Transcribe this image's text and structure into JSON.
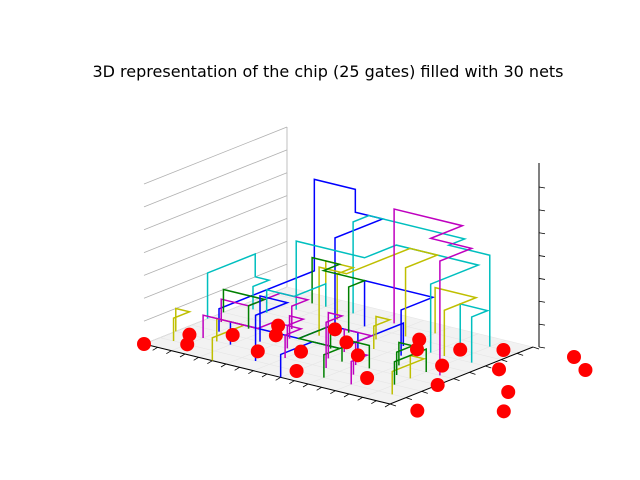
{
  "chart_data": {
    "type": "3d-line",
    "title": "3D representation of the chip (25 gates) filled with 30 nets",
    "xlabel": "",
    "ylabel": "",
    "zlabel": "",
    "tick_labels_visible": false,
    "grid": true,
    "pane_floor_color": "#f2f2f2",
    "gate_color": "#ff0000",
    "net_colors": [
      "#0000ff",
      "#00bfbf",
      "#bfbf00",
      "#bf00bf",
      "#008000"
    ],
    "gates": [
      [
        0,
        0
      ],
      [
        1,
        2
      ],
      [
        2,
        1
      ],
      [
        3,
        3
      ],
      [
        4,
        5
      ],
      [
        5,
        4
      ],
      [
        6,
        2
      ],
      [
        7,
        6
      ],
      [
        8,
        3
      ],
      [
        9,
        5
      ],
      [
        10,
        1
      ],
      [
        11,
        4
      ],
      [
        12,
        7
      ],
      [
        13,
        6
      ],
      [
        14,
        2
      ],
      [
        15,
        7
      ],
      [
        16,
        5
      ],
      [
        17,
        8
      ],
      [
        18,
        3
      ],
      [
        19,
        6
      ],
      [
        20,
        0
      ],
      [
        21,
        9
      ],
      [
        22,
        4
      ],
      [
        23,
        8
      ],
      [
        24,
        2
      ]
    ],
    "nets": [
      {
        "color": "#0000ff",
        "path": [
          [
            2,
            3,
            0
          ],
          [
            2,
            3,
            1
          ],
          [
            2,
            9,
            1
          ],
          [
            2,
            9,
            5
          ],
          [
            5,
            9,
            5
          ],
          [
            5,
            9,
            4
          ],
          [
            7,
            9,
            4
          ],
          [
            7,
            6,
            4
          ],
          [
            7,
            6,
            0
          ]
        ]
      },
      {
        "color": "#0000ff",
        "path": [
          [
            4,
            2,
            0
          ],
          [
            4,
            2,
            1
          ],
          [
            9,
            2,
            1
          ],
          [
            9,
            4,
            1
          ],
          [
            11,
            4,
            1
          ],
          [
            11,
            4,
            0
          ]
        ]
      },
      {
        "color": "#0000ff",
        "path": [
          [
            12,
            6,
            0
          ],
          [
            12,
            6,
            1
          ],
          [
            12,
            2,
            1
          ],
          [
            10,
            2,
            1
          ],
          [
            10,
            0,
            1
          ],
          [
            10,
            0,
            0
          ]
        ]
      },
      {
        "color": "#0000ff",
        "path": [
          [
            8,
            7,
            0
          ],
          [
            8,
            7,
            2
          ],
          [
            13,
            7,
            2
          ],
          [
            13,
            5,
            2
          ],
          [
            13,
            5,
            0
          ]
        ]
      },
      {
        "color": "#00bfbf",
        "path": [
          [
            0,
            4,
            0
          ],
          [
            0,
            4,
            2
          ],
          [
            0,
            7,
            2
          ],
          [
            0,
            7,
            1
          ],
          [
            1,
            7,
            1
          ],
          [
            1,
            6,
            1
          ],
          [
            1,
            6,
            0
          ]
        ]
      },
      {
        "color": "#00bfbf",
        "path": [
          [
            3,
            7,
            0
          ],
          [
            3,
            7,
            3
          ],
          [
            8,
            7,
            3
          ],
          [
            8,
            9,
            3
          ],
          [
            14,
            9,
            3
          ],
          [
            14,
            6,
            3
          ],
          [
            14,
            6,
            0
          ]
        ]
      },
      {
        "color": "#00bfbf",
        "path": [
          [
            6,
            8,
            0
          ],
          [
            6,
            8,
            4
          ],
          [
            6,
            9,
            4
          ],
          [
            13,
            9,
            4
          ],
          [
            13,
            8,
            4
          ],
          [
            16,
            8,
            4
          ],
          [
            16,
            8,
            0
          ]
        ]
      },
      {
        "color": "#00bfbf",
        "path": [
          [
            15,
            7,
            0
          ],
          [
            15,
            7,
            2
          ],
          [
            17,
            7,
            2
          ],
          [
            17,
            6,
            2
          ],
          [
            17,
            6,
            0
          ]
        ]
      },
      {
        "color": "#bfbf00",
        "path": [
          [
            0,
            2,
            0
          ],
          [
            0,
            2,
            1
          ],
          [
            1,
            2,
            1
          ],
          [
            1,
            1,
            1
          ],
          [
            1,
            1,
            0
          ]
        ]
      },
      {
        "color": "#bfbf00",
        "path": [
          [
            3,
            2,
            0
          ],
          [
            3,
            2,
            1
          ],
          [
            5,
            2,
            1
          ],
          [
            5,
            0,
            1
          ],
          [
            5,
            0,
            0
          ]
        ]
      },
      {
        "color": "#bfbf00",
        "path": [
          [
            4,
            8,
            0
          ],
          [
            4,
            8,
            2
          ],
          [
            6,
            8,
            2
          ],
          [
            6,
            7,
            2
          ],
          [
            6,
            7,
            0
          ]
        ]
      },
      {
        "color": "#bfbf00",
        "path": [
          [
            7,
            5,
            0
          ],
          [
            7,
            5,
            3
          ],
          [
            9,
            5,
            3
          ],
          [
            9,
            9,
            3
          ],
          [
            11,
            9,
            3
          ],
          [
            11,
            7,
            3
          ],
          [
            11,
            7,
            0
          ]
        ]
      },
      {
        "color": "#bfbf00",
        "path": [
          [
            10,
            6,
            0
          ],
          [
            10,
            6,
            1
          ],
          [
            11,
            6,
            1
          ],
          [
            11,
            5,
            1
          ],
          [
            11,
            5,
            0
          ]
        ]
      },
      {
        "color": "#bfbf00",
        "path": [
          [
            16,
            3,
            0
          ],
          [
            16,
            3,
            1
          ],
          [
            17,
            3,
            1
          ],
          [
            17,
            1,
            1
          ],
          [
            17,
            1,
            0
          ]
        ]
      },
      {
        "color": "#bfbf00",
        "path": [
          [
            12,
            8,
            0
          ],
          [
            12,
            8,
            2
          ],
          [
            15,
            8,
            2
          ],
          [
            15,
            6,
            2
          ],
          [
            15,
            6,
            0
          ]
        ]
      },
      {
        "color": "#bf00bf",
        "path": [
          [
            1,
            4,
            0
          ],
          [
            1,
            4,
            1
          ],
          [
            3,
            4,
            1
          ],
          [
            3,
            6,
            1
          ],
          [
            5,
            6,
            1
          ],
          [
            5,
            5,
            1
          ],
          [
            5,
            5,
            0
          ]
        ]
      },
      {
        "color": "#bf00bf",
        "path": [
          [
            2,
            2,
            0
          ],
          [
            2,
            2,
            1
          ],
          [
            6,
            2,
            1
          ],
          [
            6,
            3,
            1
          ],
          [
            8,
            3,
            1
          ],
          [
            8,
            2,
            1
          ],
          [
            8,
            2,
            0
          ]
        ]
      },
      {
        "color": "#bf00bf",
        "path": [
          [
            6,
            4,
            0
          ],
          [
            6,
            4,
            1
          ],
          [
            7,
            4,
            1
          ],
          [
            7,
            3,
            1
          ],
          [
            7,
            3,
            0
          ]
        ]
      },
      {
        "color": "#bf00bf",
        "path": [
          [
            9,
            8,
            0
          ],
          [
            9,
            8,
            5
          ],
          [
            14,
            8,
            5
          ],
          [
            14,
            6,
            5
          ],
          [
            17,
            6,
            5
          ],
          [
            17,
            4,
            5
          ],
          [
            17,
            4,
            0
          ]
        ]
      },
      {
        "color": "#bf00bf",
        "path": [
          [
            10,
            4,
            0
          ],
          [
            10,
            4,
            1
          ],
          [
            12,
            4,
            1
          ],
          [
            12,
            3,
            1
          ],
          [
            12,
            3,
            0
          ]
        ]
      },
      {
        "color": "#bf00bf",
        "path": [
          [
            13,
            2,
            0
          ],
          [
            13,
            2,
            1
          ],
          [
            14,
            2,
            1
          ],
          [
            14,
            1,
            1
          ],
          [
            14,
            1,
            0
          ]
        ]
      },
      {
        "color": "#008000",
        "path": [
          [
            0,
            5,
            0
          ],
          [
            0,
            5,
            1
          ],
          [
            3,
            5,
            1
          ],
          [
            3,
            4,
            1
          ],
          [
            3,
            4,
            0
          ]
        ]
      },
      {
        "color": "#008000",
        "path": [
          [
            3,
            8,
            0
          ],
          [
            3,
            8,
            2
          ],
          [
            5,
            8,
            2
          ],
          [
            5,
            7,
            2
          ],
          [
            8,
            7,
            2
          ],
          [
            8,
            6,
            2
          ],
          [
            8,
            6,
            0
          ]
        ]
      },
      {
        "color": "#008000",
        "path": [
          [
            9,
            4,
            0
          ],
          [
            9,
            4,
            1
          ],
          [
            9,
            2,
            1
          ],
          [
            12,
            2,
            1
          ],
          [
            12,
            1,
            1
          ],
          [
            12,
            1,
            0
          ]
        ]
      },
      {
        "color": "#008000",
        "path": [
          [
            11,
            3,
            0
          ],
          [
            11,
            3,
            1
          ],
          [
            13,
            3,
            1
          ],
          [
            13,
            3,
            0
          ]
        ]
      },
      {
        "color": "#008000",
        "path": [
          [
            14,
            4,
            0
          ],
          [
            14,
            4,
            1
          ],
          [
            15,
            4,
            1
          ],
          [
            15,
            3,
            1
          ],
          [
            15,
            3,
            0
          ]
        ]
      },
      {
        "color": "#0000ff",
        "path": [
          [
            5,
            3,
            0
          ],
          [
            5,
            3,
            2
          ],
          [
            7,
            3,
            2
          ],
          [
            7,
            1,
            2
          ],
          [
            7,
            1,
            0
          ]
        ]
      },
      {
        "color": "#00bfbf",
        "path": [
          [
            2,
            6,
            0
          ],
          [
            2,
            6,
            1
          ],
          [
            4,
            6,
            1
          ],
          [
            4,
            8,
            1
          ],
          [
            4,
            8,
            0
          ]
        ]
      },
      {
        "color": "#bf00bf",
        "path": [
          [
            10,
            3,
            0
          ],
          [
            10,
            3,
            2
          ],
          [
            11,
            3,
            2
          ],
          [
            11,
            2,
            2
          ],
          [
            11,
            2,
            0
          ]
        ]
      },
      {
        "color": "#008000",
        "path": [
          [
            16,
            2,
            0
          ],
          [
            16,
            2,
            1
          ],
          [
            16,
            4,
            1
          ],
          [
            16,
            4,
            0
          ]
        ]
      }
    ],
    "axis_ranges": {
      "x": [
        0,
        18
      ],
      "y": [
        0,
        9
      ],
      "z": [
        0,
        7
      ]
    }
  }
}
